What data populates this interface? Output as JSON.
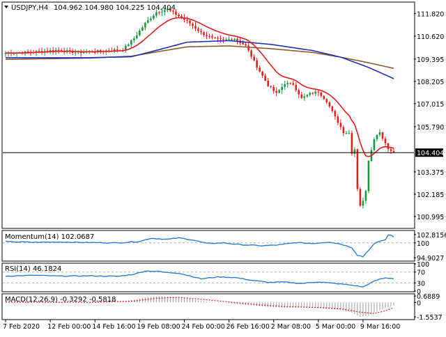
{
  "colors": {
    "background": "#ffffff",
    "frame": "#000000",
    "bull_candle": "#1a9641",
    "bear_candle": "#e0201f",
    "ma_fast": "#e31a1c",
    "ma_mid": "#1f2fb4",
    "ma_slow": "#8c5a2b",
    "indicator_line": "#2b7bd6",
    "level_line": "#b0b0b0",
    "macd_hist": "#9a9a9a",
    "macd_signal": "#e31a1c",
    "price_tag_bg": "#ffffff"
  },
  "chart_data": [
    {
      "type": "candlestick",
      "title": "USDJPY,H4",
      "ohlc_header": "104.962 104.980 104.225 104.404",
      "ylim": [
        100.4,
        112.4
      ],
      "y_ticks": [
        "111.820",
        "110.620",
        "109.395",
        "108.205",
        "107.015",
        "105.790",
        "104.404",
        "103.375",
        "102.185",
        "100.995"
      ],
      "y_tick_values": [
        111.82,
        110.62,
        109.395,
        108.205,
        107.015,
        105.79,
        104.404,
        103.375,
        102.185,
        100.995
      ],
      "current_price": "104.404",
      "current_price_value": 104.404,
      "x_ticks": [
        "7 Feb 2020",
        "12 Feb 00:00",
        "14 Feb 16:00",
        "19 Feb 08:00",
        "24 Feb 00:00",
        "26 Feb 16:00",
        "2 Mar 08:00",
        "5 Mar 00:00",
        "9 Mar 16:00"
      ],
      "x_tick_positions": [
        0,
        16,
        32,
        48,
        64,
        80,
        96,
        112,
        128
      ],
      "bar_count": 140,
      "close_anchors": [
        [
          0,
          109.72
        ],
        [
          10,
          109.78
        ],
        [
          18,
          109.88
        ],
        [
          25,
          109.75
        ],
        [
          32,
          109.8
        ],
        [
          38,
          109.87
        ],
        [
          42,
          109.9
        ],
        [
          46,
          110.5
        ],
        [
          50,
          111.3
        ],
        [
          54,
          111.9
        ],
        [
          58,
          112.05
        ],
        [
          62,
          111.7
        ],
        [
          66,
          111.3
        ],
        [
          70,
          110.8
        ],
        [
          74,
          110.5
        ],
        [
          78,
          110.4
        ],
        [
          82,
          110.5
        ],
        [
          86,
          110.1
        ],
        [
          90,
          109.0
        ],
        [
          94,
          108.0
        ],
        [
          97,
          107.55
        ],
        [
          100,
          108.1
        ],
        [
          103,
          108.05
        ],
        [
          106,
          107.3
        ],
        [
          109,
          107.55
        ],
        [
          112,
          107.65
        ],
        [
          115,
          107.15
        ],
        [
          118,
          106.3
        ],
        [
          121,
          105.5
        ],
        [
          123,
          105.45
        ],
        [
          124,
          104.4
        ],
        [
          125,
          104.6
        ],
        [
          126,
          102.5
        ],
        [
          127,
          101.6
        ],
        [
          128,
          101.8
        ],
        [
          129,
          102.4
        ],
        [
          130,
          104.0
        ],
        [
          131,
          104.6
        ],
        [
          132,
          105.1
        ],
        [
          133,
          105.4
        ],
        [
          134,
          105.5
        ],
        [
          135,
          105.2
        ],
        [
          136,
          104.9
        ],
        [
          137,
          104.6
        ],
        [
          138,
          104.55
        ],
        [
          139,
          104.4
        ]
      ],
      "moving_averages": [
        {
          "name": "fast",
          "period": 14
        },
        {
          "name": "mid",
          "period": 50
        },
        {
          "name": "slow",
          "period": 100
        }
      ],
      "ma_mid_anchors": [
        [
          0,
          109.47
        ],
        [
          30,
          109.47
        ],
        [
          45,
          109.52
        ],
        [
          55,
          109.9
        ],
        [
          65,
          110.3
        ],
        [
          80,
          110.38
        ],
        [
          95,
          110.18
        ],
        [
          110,
          109.85
        ],
        [
          120,
          109.5
        ],
        [
          130,
          108.95
        ],
        [
          139,
          108.35
        ]
      ],
      "ma_slow_anchors": [
        [
          0,
          109.38
        ],
        [
          30,
          109.45
        ],
        [
          45,
          109.55
        ],
        [
          55,
          109.8
        ],
        [
          65,
          110.05
        ],
        [
          80,
          110.1
        ],
        [
          95,
          109.95
        ],
        [
          110,
          109.75
        ],
        [
          120,
          109.5
        ],
        [
          130,
          109.2
        ],
        [
          139,
          108.9
        ]
      ]
    },
    {
      "type": "line",
      "title": "Momentum(14) 102.0687",
      "ylim": [
        94.0,
        104.0
      ],
      "y_ticks": [
        "102.8156",
        "100",
        "94.9027"
      ],
      "y_tick_values": [
        102.8156,
        100,
        94.9027
      ],
      "levels": [
        100
      ],
      "anchors": [
        [
          0,
          100.4
        ],
        [
          10,
          100.2
        ],
        [
          20,
          100.3
        ],
        [
          30,
          100.1
        ],
        [
          40,
          100.0
        ],
        [
          48,
          100.5
        ],
        [
          52,
          101.6
        ],
        [
          58,
          101.2
        ],
        [
          62,
          101.7
        ],
        [
          67,
          101.0
        ],
        [
          72,
          99.8
        ],
        [
          78,
          100.0
        ],
        [
          84,
          99.4
        ],
        [
          92,
          99.0
        ],
        [
          98,
          99.3
        ],
        [
          104,
          100.1
        ],
        [
          110,
          99.8
        ],
        [
          116,
          100.3
        ],
        [
          120,
          99.6
        ],
        [
          124,
          98.4
        ],
        [
          126,
          95.8
        ],
        [
          128,
          95.3
        ],
        [
          130,
          97.5
        ],
        [
          132,
          99.6
        ],
        [
          134,
          100.6
        ],
        [
          136,
          101.0
        ],
        [
          137,
          102.8
        ],
        [
          138,
          102.5
        ],
        [
          139,
          102.07
        ]
      ]
    },
    {
      "type": "line",
      "title": "RSI(14) 46.1824",
      "ylim": [
        0,
        100
      ],
      "y_ticks": [
        "100",
        "70",
        "30",
        "0"
      ],
      "y_tick_values": [
        100,
        70,
        30,
        0
      ],
      "levels": [
        70,
        30
      ],
      "anchors": [
        [
          0,
          55
        ],
        [
          10,
          58
        ],
        [
          20,
          55
        ],
        [
          30,
          56
        ],
        [
          40,
          54
        ],
        [
          46,
          62
        ],
        [
          50,
          74
        ],
        [
          54,
          73
        ],
        [
          58,
          68
        ],
        [
          62,
          66
        ],
        [
          66,
          56
        ],
        [
          70,
          45
        ],
        [
          76,
          52
        ],
        [
          82,
          50
        ],
        [
          88,
          40
        ],
        [
          94,
          32
        ],
        [
          100,
          33
        ],
        [
          106,
          28
        ],
        [
          112,
          34
        ],
        [
          118,
          28
        ],
        [
          122,
          24
        ],
        [
          125,
          20
        ],
        [
          128,
          15
        ],
        [
          130,
          26
        ],
        [
          132,
          36
        ],
        [
          134,
          44
        ],
        [
          136,
          48
        ],
        [
          138,
          47
        ],
        [
          139,
          46.2
        ]
      ]
    },
    {
      "type": "bar",
      "title": "MACD(12,26,9) -0.3292 -0.5818",
      "ylim": [
        -1.78,
        0.85
      ],
      "y_ticks": [
        "0.6889",
        "0",
        "-1.5537"
      ],
      "y_tick_values": [
        0.6889,
        0,
        -1.5537
      ],
      "hist_anchors": [
        [
          0,
          0.05
        ],
        [
          20,
          0.03
        ],
        [
          30,
          0.0
        ],
        [
          40,
          0.05
        ],
        [
          46,
          0.3
        ],
        [
          50,
          0.55
        ],
        [
          56,
          0.68
        ],
        [
          60,
          0.6
        ],
        [
          66,
          0.4
        ],
        [
          70,
          0.15
        ],
        [
          76,
          0.0
        ],
        [
          84,
          -0.2
        ],
        [
          92,
          -0.45
        ],
        [
          100,
          -0.6
        ],
        [
          108,
          -0.5
        ],
        [
          114,
          -0.6
        ],
        [
          120,
          -0.85
        ],
        [
          124,
          -1.1
        ],
        [
          127,
          -1.55
        ],
        [
          130,
          -1.45
        ],
        [
          133,
          -1.0
        ],
        [
          136,
          -0.6
        ],
        [
          139,
          -0.33
        ]
      ],
      "signal_anchors": [
        [
          0,
          0.03
        ],
        [
          30,
          0.0
        ],
        [
          46,
          0.15
        ],
        [
          54,
          0.45
        ],
        [
          62,
          0.55
        ],
        [
          70,
          0.35
        ],
        [
          80,
          0.05
        ],
        [
          90,
          -0.25
        ],
        [
          100,
          -0.45
        ],
        [
          112,
          -0.55
        ],
        [
          120,
          -0.7
        ],
        [
          127,
          -1.05
        ],
        [
          132,
          -1.2
        ],
        [
          136,
          -0.9
        ],
        [
          139,
          -0.58
        ]
      ]
    }
  ]
}
